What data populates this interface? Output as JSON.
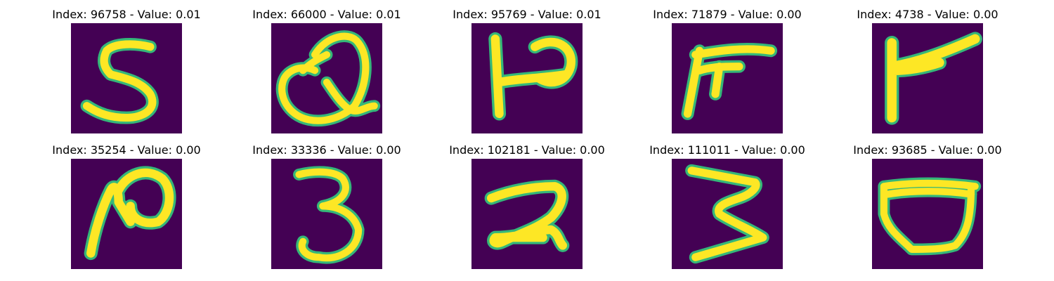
{
  "colors": {
    "background": "#440154",
    "stroke": "#fde725",
    "edge": "#35b779"
  },
  "panels": [
    {
      "label": "Index: 96758 - Value: 0.01",
      "glyph": "digit-5-icon"
    },
    {
      "label": "Index: 66000 - Value: 0.01",
      "glyph": "letter-q-icon"
    },
    {
      "label": "Index: 95769 - Value: 0.01",
      "glyph": "letter-p-icon"
    },
    {
      "label": "Index: 71879 - Value: 0.00",
      "glyph": "pi-shape-icon"
    },
    {
      "label": "Index: 4738 - Value: 0.00",
      "glyph": "letter-r-icon"
    },
    {
      "label": "Index: 35254 - Value: 0.00",
      "glyph": "letter-n-icon"
    },
    {
      "label": "Index: 33336 - Value: 0.00",
      "glyph": "digit-3-icon"
    },
    {
      "label": "Index: 102181 - Value: 0.00",
      "glyph": "digit-2-icon"
    },
    {
      "label": "Index: 111011 - Value: 0.00",
      "glyph": "digit-3-angular-icon"
    },
    {
      "label": "Index: 93685 - Value: 0.00",
      "glyph": "cup-shape-icon"
    }
  ]
}
